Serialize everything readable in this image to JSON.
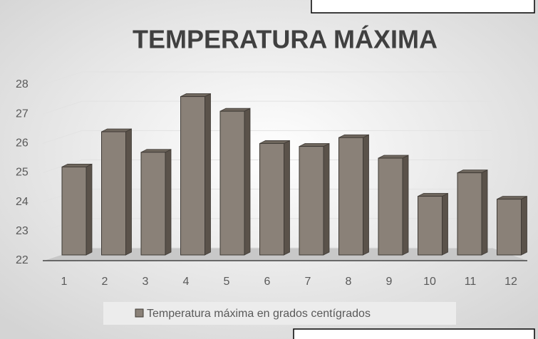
{
  "chart_data": {
    "type": "bar",
    "title": "TEMPERATURA MÁXIMA",
    "categories": [
      "1",
      "2",
      "3",
      "4",
      "5",
      "6",
      "7",
      "8",
      "9",
      "10",
      "11",
      "12"
    ],
    "series": [
      {
        "name": "Temperatura máxima en grados centígrados",
        "color": "#8a8178",
        "values": [
          25.1,
          26.3,
          25.6,
          27.5,
          27.0,
          25.9,
          25.8,
          26.1,
          25.4,
          24.1,
          24.9,
          24.0
        ]
      }
    ],
    "ylim": [
      22,
      28
    ],
    "yticks": [
      22,
      23,
      24,
      25,
      26,
      27,
      28
    ],
    "grid": true,
    "legend": "bottom"
  }
}
